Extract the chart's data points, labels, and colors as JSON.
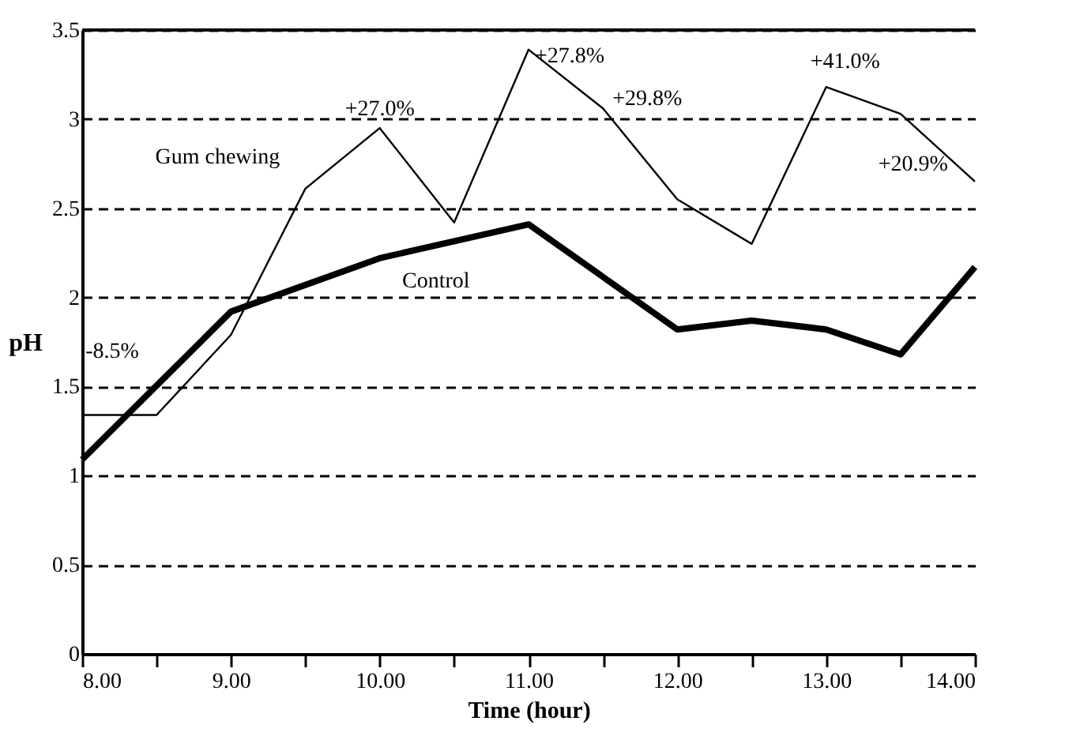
{
  "chart_data": {
    "type": "line",
    "xlabel": "Time (hour)",
    "ylabel": "pH",
    "xlim": [
      8,
      14
    ],
    "xticks": [
      {
        "value": 8,
        "label": "8.00"
      },
      {
        "value": 8.5,
        "label": null
      },
      {
        "value": 9,
        "label": "9.00"
      },
      {
        "value": 9.5,
        "label": null
      },
      {
        "value": 10,
        "label": "10.00"
      },
      {
        "value": 10.5,
        "label": null
      },
      {
        "value": 11,
        "label": "11.00"
      },
      {
        "value": 11.5,
        "label": null
      },
      {
        "value": 12,
        "label": "12.00"
      },
      {
        "value": 12.5,
        "label": null
      },
      {
        "value": 13,
        "label": "13.00"
      },
      {
        "value": 13.5,
        "label": null
      },
      {
        "value": 14,
        "label": "14.00"
      }
    ],
    "ylim": [
      0,
      3.5
    ],
    "yticks": [
      0,
      0.5,
      1,
      1.5,
      2,
      2.5,
      3,
      3.5
    ],
    "grid": "y",
    "marker": "none",
    "series": [
      {
        "name": "Gum chewing",
        "color": "#000000",
        "line_style": "solid",
        "x": [
          8,
          8.5,
          9,
          9.5,
          10,
          10.5,
          11,
          11.5,
          12,
          12.5,
          13,
          13.5,
          14
        ],
        "values": [
          1.34,
          1.34,
          1.79,
          2.61,
          2.95,
          2.42,
          3.39,
          3.06,
          2.55,
          2.3,
          3.18,
          3.03,
          2.65
        ]
      },
      {
        "name": "Control",
        "color": "#000000",
        "line_style": "solid",
        "x": [
          8,
          9,
          10,
          11,
          12,
          12.5,
          13,
          13.5,
          14
        ],
        "values": [
          1.09,
          1.92,
          2.22,
          2.41,
          1.82,
          1.87,
          1.82,
          1.68,
          2.17
        ]
      }
    ],
    "annotations": [
      {
        "text": "-8.5%",
        "x": 8.5,
        "y": 1.5
      },
      {
        "text": "+27.0%",
        "x": 10,
        "y": 2.95
      },
      {
        "text": "+27.8%",
        "x": 11,
        "y": 3.39
      },
      {
        "text": "+29.8%",
        "x": 11.5,
        "y": 3.06
      },
      {
        "text": "+41.0%",
        "x": 13,
        "y": 3.18
      },
      {
        "text": "+20.9%",
        "x": 13.5,
        "y": 3.03
      }
    ]
  }
}
